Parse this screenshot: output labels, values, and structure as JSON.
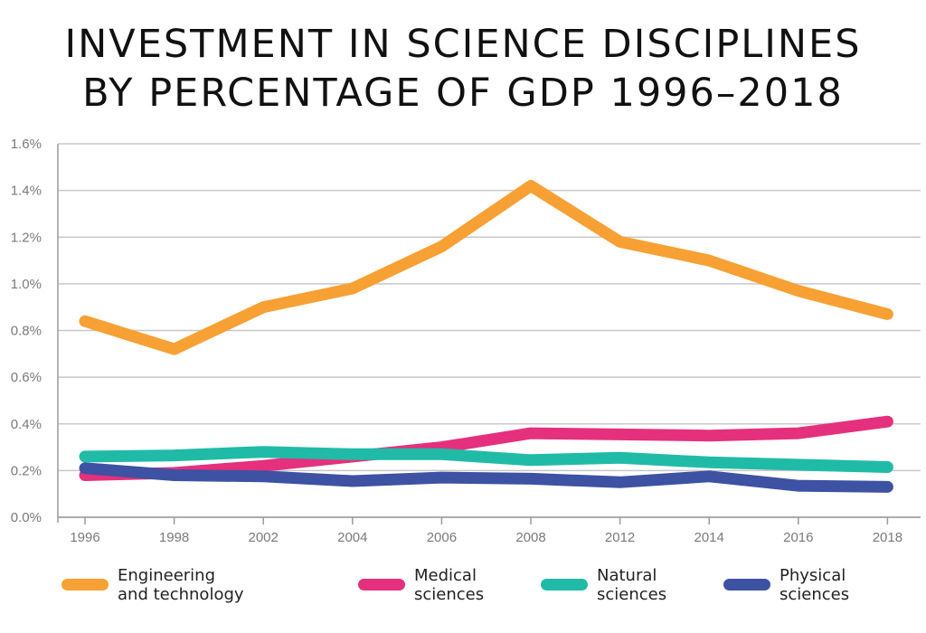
{
  "chart_data": {
    "type": "line",
    "title_lines": [
      "INVESTMENT IN SCIENCE DISCIPLINES",
      "BY PERCENTAGE OF GDP 1996–2018"
    ],
    "xlabel": "",
    "ylabel": "",
    "categories": [
      "1996",
      "1998",
      "2002",
      "2004",
      "2006",
      "2008",
      "2012",
      "2014",
      "2016",
      "2018"
    ],
    "y_ticks": [
      "0.0%",
      "0.2%",
      "0.4%",
      "0.6%",
      "0.8%",
      "1.0%",
      "1.2%",
      "1.4%",
      "1.6%"
    ],
    "ylim": [
      0,
      1.6
    ],
    "y_unit": "%",
    "grid": true,
    "legend_position": "bottom",
    "series": [
      {
        "name": "Engineering\nand technology",
        "color": "#f7a034",
        "values": [
          0.84,
          0.72,
          0.9,
          0.98,
          1.16,
          1.42,
          1.18,
          1.1,
          0.97,
          0.87
        ]
      },
      {
        "name": "Medical\nsciences",
        "color": "#e5307d",
        "values": [
          0.18,
          0.19,
          0.22,
          0.26,
          0.3,
          0.36,
          0.355,
          0.35,
          0.36,
          0.41
        ]
      },
      {
        "name": "Natural\nsciences",
        "color": "#20bba7",
        "values": [
          0.26,
          0.265,
          0.28,
          0.27,
          0.27,
          0.245,
          0.255,
          0.235,
          0.225,
          0.215
        ]
      },
      {
        "name": "Physical\nsciences",
        "color": "#3d52a3",
        "values": [
          0.21,
          0.18,
          0.175,
          0.155,
          0.17,
          0.165,
          0.15,
          0.175,
          0.135,
          0.13
        ]
      }
    ]
  }
}
